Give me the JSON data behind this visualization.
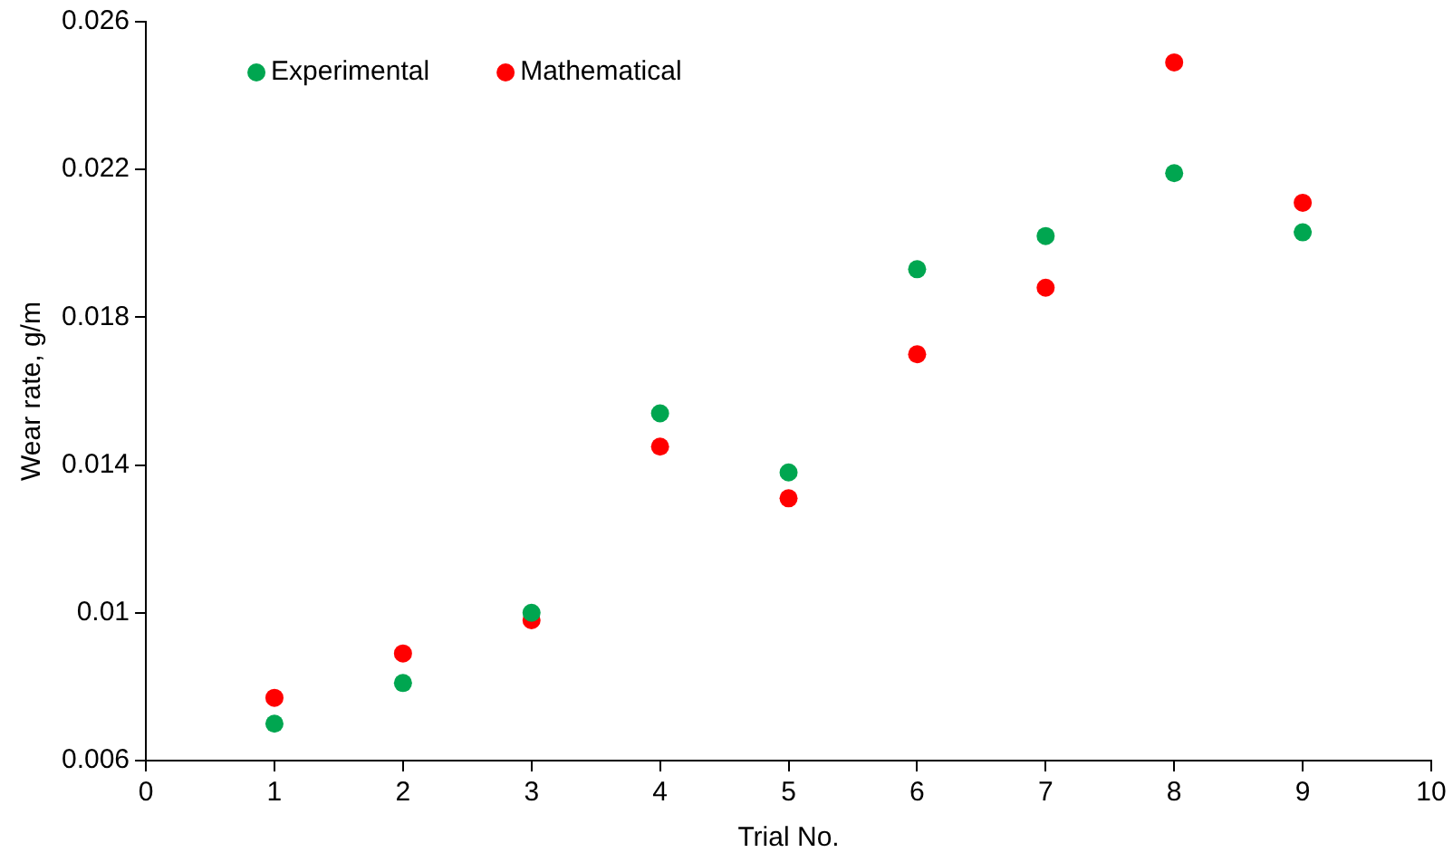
{
  "chart_data": {
    "type": "scatter",
    "xlabel": "Trial No.",
    "ylabel": "Wear rate, g/m",
    "x": [
      1,
      2,
      3,
      4,
      5,
      6,
      7,
      8,
      9
    ],
    "series": [
      {
        "name": "Experimental",
        "color": "#00a650",
        "values": [
          0.007,
          0.0081,
          0.01,
          0.0154,
          0.0138,
          0.0193,
          0.0202,
          0.0219,
          0.0203
        ]
      },
      {
        "name": "Mathematical",
        "color": "#ff0000",
        "values": [
          0.0077,
          0.0089,
          0.0098,
          0.0145,
          0.0131,
          0.017,
          0.0188,
          0.0249,
          0.0211
        ]
      }
    ],
    "xlim": [
      0,
      10
    ],
    "xticks": [
      0,
      1,
      2,
      3,
      4,
      5,
      6,
      7,
      8,
      9,
      10
    ],
    "ylim": [
      0.006,
      0.026
    ],
    "yticks": [
      0.006,
      0.01,
      0.014,
      0.018,
      0.022,
      0.026
    ],
    "grid": false,
    "legend": "top left",
    "marker": "circle"
  }
}
